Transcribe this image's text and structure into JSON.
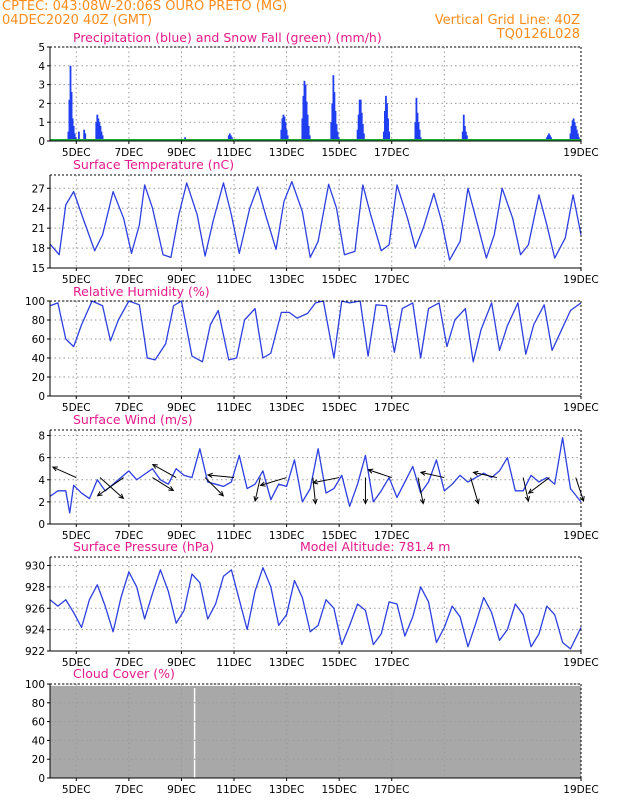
{
  "header": {
    "left_line1": "CPTEC:   043:08W-20:06S   OURO PRETO (MG)",
    "left_line2": "04DEC2020  40Z  (GMT)",
    "right_line1": "Vertical Grid Line: 40Z",
    "right_line2": "TQ0126L028"
  },
  "colors": {
    "header": "#ff8c1a",
    "titles": "#e8198b",
    "precip": "#1f3ef0",
    "snow": "#1fa83a",
    "line": "#2d3fe0",
    "cloud": "#a8a8a8",
    "grid": "#9a9a9a"
  },
  "chart_data": [
    {
      "type": "bar",
      "title": "Precipitation (blue) and Snow Fall (green) (mm/h)",
      "ylim": [
        0,
        5
      ],
      "yticks": [
        0,
        1,
        2,
        3,
        4,
        5
      ],
      "xticks": [
        "5DEC",
        "7DEC",
        "9DEC",
        "11DEC",
        "13DEC",
        "15DEC",
        "17DEC",
        "19DEC"
      ],
      "series": [
        {
          "name": "Precipitation",
          "x": [
            0.7,
            0.74,
            0.78,
            0.82,
            0.86,
            0.9,
            0.94,
            0.98,
            1.1,
            1.3,
            1.34,
            1.76,
            1.8,
            1.84,
            1.88,
            1.92,
            1.96,
            2.0,
            5.1,
            5.14,
            5.18,
            6.8,
            6.84,
            6.88,
            6.92,
            6.96,
            8.8,
            8.84,
            8.88,
            8.92,
            8.96,
            9.0,
            9.04,
            9.08,
            9.6,
            9.64,
            9.68,
            9.72,
            9.76,
            9.8,
            9.84,
            9.88,
            10.7,
            10.74,
            10.78,
            10.82,
            10.86,
            10.9,
            10.94,
            10.98,
            11.7,
            11.74,
            11.78,
            11.82,
            11.86,
            11.9,
            11.94,
            12.7,
            12.74,
            12.78,
            12.82,
            12.86,
            12.9,
            13.9,
            13.94,
            13.98,
            14.02,
            14.06,
            14.1,
            15.7,
            15.74,
            15.78,
            15.82,
            15.86,
            15.9,
            18.9,
            18.94,
            18.98,
            19.02,
            19.06,
            19.1,
            19.8,
            19.84,
            19.88,
            19.92,
            19.96,
            20.0,
            20.04,
            20.08,
            20.12
          ],
          "values": [
            0.5,
            2.2,
            4.0,
            2.6,
            1.2,
            0.8,
            0.4,
            0.2,
            0.5,
            0.6,
            0.4,
            1.0,
            1.4,
            1.2,
            1.0,
            0.8,
            0.5,
            0.3,
            0.1,
            0.2,
            0.1,
            0.3,
            0.4,
            0.3,
            0.2,
            0.1,
            0.6,
            1.2,
            1.4,
            1.3,
            1.0,
            0.6,
            0.3,
            0.1,
            1.2,
            2.4,
            3.2,
            3.0,
            2.1,
            1.4,
            0.8,
            0.3,
            1.0,
            2.0,
            3.5,
            2.6,
            1.6,
            0.9,
            0.5,
            0.2,
            0.6,
            1.4,
            2.2,
            2.2,
            1.5,
            0.9,
            0.4,
            0.5,
            1.6,
            2.4,
            2.0,
            1.2,
            0.5,
            1.0,
            2.3,
            1.5,
            1.0,
            0.6,
            0.2,
            0.5,
            1.4,
            0.8,
            0.5,
            0.3,
            0.1,
            0.2,
            0.3,
            0.4,
            0.3,
            0.2,
            0.1,
            0.4,
            0.8,
            1.1,
            1.2,
            1.0,
            0.8,
            0.6,
            0.4,
            0.2
          ]
        },
        {
          "name": "Snow Fall",
          "x": [
            0.0,
            20.2
          ],
          "values": [
            0,
            0
          ]
        }
      ]
    },
    {
      "type": "line",
      "title": "Surface Temperature (nC)",
      "ylim": [
        15,
        29
      ],
      "yticks": [
        15,
        18,
        21,
        24,
        27
      ],
      "xticks": [
        "5DEC",
        "7DEC",
        "9DEC",
        "11DEC",
        "13DEC",
        "15DEC",
        "17DEC",
        "19DEC"
      ],
      "series": [
        {
          "name": "Surface Temperature",
          "x": [
            0.0,
            0.35,
            0.6,
            0.9,
            1.3,
            1.7,
            2.0,
            2.4,
            2.8,
            3.1,
            3.4,
            3.6,
            3.9,
            4.3,
            4.6,
            4.9,
            5.2,
            5.6,
            5.9,
            6.2,
            6.6,
            6.9,
            7.2,
            7.6,
            7.9,
            8.2,
            8.6,
            8.9,
            9.2,
            9.6,
            9.9,
            10.2,
            10.6,
            10.9,
            11.2,
            11.6,
            11.9,
            12.2,
            12.6,
            12.9,
            13.2,
            13.6,
            13.9,
            14.2,
            14.6,
            14.9,
            15.2,
            15.6,
            15.9,
            16.2,
            16.6,
            16.9,
            17.2,
            17.6,
            17.9,
            18.2,
            18.6,
            18.9,
            19.2,
            19.6,
            19.9,
            20.2
          ],
          "values": [
            18.6,
            17.0,
            24.5,
            26.5,
            22.0,
            17.6,
            20.0,
            26.5,
            22.5,
            17.2,
            21.5,
            27.5,
            24.0,
            17.0,
            16.6,
            23.0,
            27.8,
            23.0,
            16.8,
            22.0,
            27.8,
            23.0,
            17.2,
            24.0,
            27.2,
            23.0,
            17.8,
            25.0,
            28.0,
            23.5,
            16.6,
            19.0,
            27.6,
            24.0,
            17.0,
            17.5,
            27.5,
            23.0,
            17.6,
            18.5,
            27.5,
            22.5,
            18.0,
            21.0,
            26.2,
            22.0,
            16.2,
            19.0,
            27.0,
            22.5,
            16.5,
            20.0,
            27.0,
            22.5,
            17.0,
            18.5,
            26.0,
            21.5,
            16.5,
            19.5,
            26.0,
            20.0
          ]
        }
      ]
    },
    {
      "type": "line",
      "title": "Relative Humidity (%)",
      "ylim": [
        0,
        100
      ],
      "yticks": [
        0,
        20,
        40,
        60,
        80,
        100
      ],
      "xticks": [
        "5DEC",
        "7DEC",
        "9DEC",
        "11DEC",
        "13DEC",
        "15DEC",
        "17DEC",
        "19DEC"
      ],
      "series": [
        {
          "name": "Relative Humidity",
          "x": [
            0.0,
            0.3,
            0.6,
            0.9,
            1.2,
            1.6,
            2.0,
            2.3,
            2.6,
            3.0,
            3.4,
            3.7,
            4.0,
            4.4,
            4.7,
            5.0,
            5.4,
            5.8,
            6.1,
            6.4,
            6.8,
            7.1,
            7.4,
            7.8,
            8.1,
            8.4,
            8.8,
            9.1,
            9.4,
            9.8,
            10.1,
            10.4,
            10.8,
            11.1,
            11.4,
            11.8,
            12.1,
            12.4,
            12.8,
            13.1,
            13.4,
            13.8,
            14.1,
            14.4,
            14.8,
            15.1,
            15.4,
            15.8,
            16.1,
            16.4,
            16.8,
            17.1,
            17.4,
            17.8,
            18.1,
            18.4,
            18.8,
            19.1,
            19.4,
            19.8,
            20.2
          ],
          "values": [
            95,
            98,
            60,
            52,
            75,
            100,
            95,
            58,
            80,
            100,
            96,
            40,
            38,
            55,
            95,
            100,
            42,
            36,
            75,
            90,
            38,
            40,
            80,
            92,
            40,
            45,
            88,
            88,
            82,
            87,
            98,
            100,
            40,
            100,
            98,
            100,
            42,
            96,
            95,
            46,
            92,
            98,
            40,
            92,
            98,
            52,
            80,
            92,
            36,
            70,
            98,
            48,
            74,
            98,
            44,
            75,
            96,
            48,
            66,
            90,
            98
          ]
        }
      ]
    },
    {
      "type": "line",
      "title": "Surface Wind (m/s)",
      "ylim": [
        0,
        8.5
      ],
      "yticks": [
        0,
        2,
        4,
        6,
        8
      ],
      "xticks": [
        "5DEC",
        "7DEC",
        "9DEC",
        "11DEC",
        "13DEC",
        "15DEC",
        "17DEC",
        "19DEC"
      ],
      "series": [
        {
          "name": "Surface Wind",
          "x": [
            0.0,
            0.3,
            0.6,
            0.75,
            0.9,
            1.2,
            1.5,
            1.8,
            2.1,
            2.4,
            2.7,
            3.0,
            3.3,
            3.6,
            3.9,
            4.2,
            4.5,
            4.8,
            5.1,
            5.4,
            5.7,
            6.0,
            6.3,
            6.6,
            6.9,
            7.2,
            7.5,
            7.8,
            8.1,
            8.4,
            8.7,
            9.0,
            9.3,
            9.6,
            9.9,
            10.2,
            10.5,
            10.8,
            11.1,
            11.4,
            11.7,
            12.0,
            12.3,
            12.6,
            12.9,
            13.2,
            13.5,
            13.8,
            14.1,
            14.4,
            14.7,
            15.0,
            15.3,
            15.6,
            15.9,
            16.2,
            16.5,
            16.8,
            17.1,
            17.4,
            17.7,
            18.0,
            18.3,
            18.6,
            18.9,
            19.2,
            19.5,
            19.8,
            20.2
          ],
          "values": [
            2.5,
            3.0,
            3.0,
            1.0,
            3.5,
            2.8,
            2.3,
            4.0,
            3.0,
            3.6,
            4.2,
            4.8,
            4.0,
            4.5,
            5.0,
            4.0,
            3.6,
            5.0,
            4.4,
            4.2,
            6.8,
            3.8,
            3.6,
            3.4,
            3.8,
            6.2,
            3.2,
            3.6,
            4.8,
            2.2,
            3.6,
            3.4,
            5.8,
            2.0,
            3.2,
            6.8,
            2.8,
            3.2,
            4.4,
            1.6,
            3.6,
            6.2,
            2.0,
            3.0,
            4.2,
            2.4,
            3.8,
            5.2,
            2.8,
            3.8,
            5.8,
            3.0,
            3.6,
            4.4,
            3.8,
            4.2,
            4.6,
            4.2,
            4.8,
            6.0,
            3.0,
            3.0,
            4.4,
            3.8,
            4.2,
            3.6,
            7.8,
            3.2,
            2.0
          ]
        }
      ],
      "vectors_x": [
        1.0,
        1.9,
        2.8,
        3.9,
        4.8,
        5.9,
        7.0,
        8.0,
        9.0,
        10.0,
        11.0,
        12.0,
        13.0,
        14.0,
        15.0,
        16.0,
        17.0,
        18.0,
        19.0,
        20.0
      ],
      "vectors_u": [
        -0.9,
        0.9,
        -1.0,
        0.8,
        -0.9,
        0.7,
        -1.0,
        -0.2,
        -1.0,
        0.1,
        -1.0,
        0.0,
        -0.9,
        0.2,
        -0.9,
        0.3,
        -0.9,
        0.2,
        -0.8,
        0.3
      ],
      "vectors_v": [
        0.4,
        -0.8,
        -0.7,
        -0.5,
        0.5,
        -0.7,
        0.1,
        -0.9,
        -0.3,
        -1.0,
        -0.2,
        -1.0,
        0.3,
        -1.0,
        0.2,
        -1.0,
        0.2,
        -0.9,
        -0.6,
        -0.9
      ]
    },
    {
      "type": "line",
      "title": "Surface Pressure (hPa)",
      "annotation": "Model Altitude: 781.4  m",
      "ylim": [
        922,
        930.8
      ],
      "yticks": [
        922,
        924,
        926,
        928,
        930
      ],
      "xticks": [
        "5DEC",
        "7DEC",
        "9DEC",
        "11DEC",
        "13DEC",
        "15DEC",
        "17DEC",
        "19DEC"
      ],
      "series": [
        {
          "name": "Surface Pressure",
          "x": [
            0.0,
            0.3,
            0.6,
            0.9,
            1.2,
            1.5,
            1.8,
            2.1,
            2.4,
            2.7,
            3.0,
            3.3,
            3.6,
            3.9,
            4.2,
            4.5,
            4.8,
            5.1,
            5.4,
            5.7,
            6.0,
            6.3,
            6.6,
            6.9,
            7.2,
            7.5,
            7.8,
            8.1,
            8.4,
            8.7,
            9.0,
            9.3,
            9.6,
            9.9,
            10.2,
            10.5,
            10.8,
            11.1,
            11.4,
            11.7,
            12.0,
            12.3,
            12.6,
            12.9,
            13.2,
            13.5,
            13.8,
            14.1,
            14.4,
            14.7,
            15.0,
            15.3,
            15.6,
            15.9,
            16.2,
            16.5,
            16.8,
            17.1,
            17.4,
            17.7,
            18.0,
            18.3,
            18.6,
            18.9,
            19.2,
            19.5,
            19.8,
            20.2
          ],
          "values": [
            926.8,
            926.2,
            926.8,
            925.6,
            924.2,
            926.8,
            928.2,
            926.2,
            923.8,
            927.0,
            929.4,
            928.0,
            925.0,
            927.4,
            929.6,
            927.6,
            924.6,
            925.8,
            929.2,
            928.4,
            925.0,
            926.4,
            929.0,
            929.6,
            926.8,
            924.0,
            927.6,
            929.8,
            928.0,
            924.4,
            925.4,
            928.6,
            927.0,
            923.8,
            924.4,
            926.8,
            926.0,
            922.6,
            924.4,
            926.4,
            925.8,
            922.6,
            923.6,
            926.6,
            926.4,
            923.4,
            925.2,
            928.0,
            926.6,
            922.8,
            924.2,
            926.2,
            925.2,
            922.4,
            924.6,
            927.0,
            925.6,
            923.0,
            924.0,
            926.4,
            925.4,
            922.4,
            923.6,
            926.2,
            925.4,
            922.8,
            922.2,
            924.2
          ]
        }
      ]
    },
    {
      "type": "area",
      "title": "Cloud Cover (%)",
      "ylim": [
        0,
        100
      ],
      "yticks": [
        0,
        20,
        40,
        60,
        80,
        100
      ],
      "xticks": [
        "5DEC",
        "7DEC",
        "9DEC",
        "11DEC",
        "13DEC",
        "15DEC",
        "17DEC",
        "19DEC"
      ],
      "gap_x": 5.5,
      "series": [
        {
          "name": "Cloud Cover",
          "x": [
            0.0,
            20.2
          ],
          "values": [
            98,
            98
          ]
        }
      ]
    }
  ]
}
